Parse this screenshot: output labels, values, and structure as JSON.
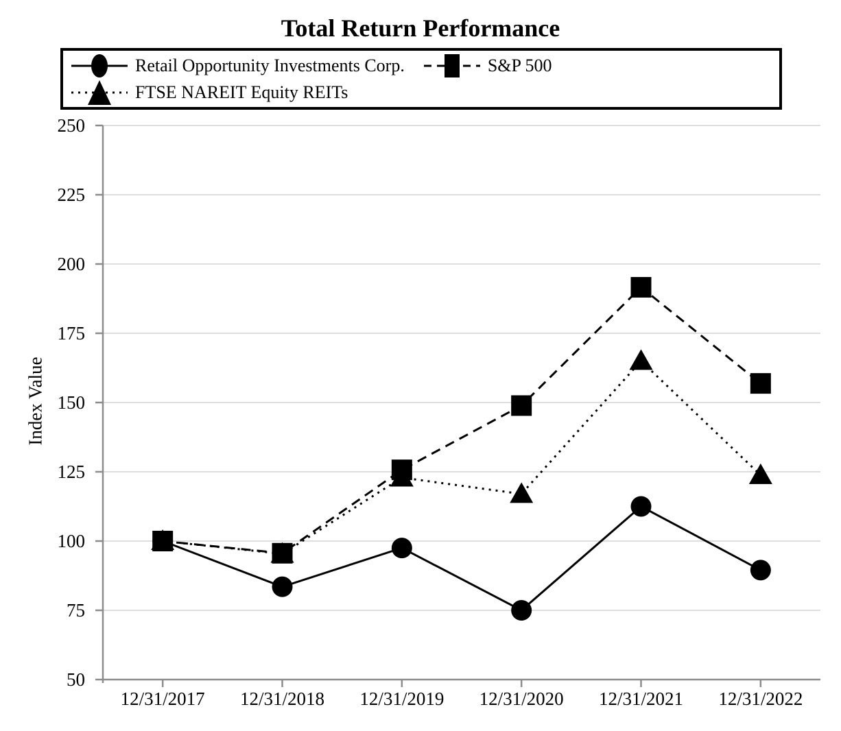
{
  "title": "Total Return Performance",
  "legend": {
    "position": "top",
    "items": [
      {
        "label": "Retail Opportunity Investments Corp.",
        "marker": "circle",
        "line_style": "solid"
      },
      {
        "label": "S&P 500",
        "marker": "square",
        "line_style": "dashed"
      },
      {
        "label": "FTSE NAREIT Equity REITs",
        "marker": "triangle",
        "line_style": "dotted"
      }
    ]
  },
  "chart_data": {
    "type": "line",
    "title": "Total Return Performance",
    "xlabel": "",
    "ylabel": "Index Value",
    "ylim": [
      50,
      250
    ],
    "yticks": [
      50,
      75,
      100,
      125,
      150,
      175,
      200,
      225,
      250
    ],
    "grid": true,
    "legend_position": "top",
    "categories": [
      "12/31/2017",
      "12/31/2018",
      "12/31/2019",
      "12/31/2020",
      "12/31/2021",
      "12/31/2022"
    ],
    "series": [
      {
        "name": "Retail Opportunity Investments Corp.",
        "marker": "circle",
        "line_style": "solid",
        "color": "#000000",
        "values": [
          100,
          83.5,
          97.5,
          75.0,
          112.5,
          89.5
        ]
      },
      {
        "name": "S&P 500",
        "marker": "square",
        "line_style": "dashed",
        "color": "#000000",
        "values": [
          100,
          95.6,
          125.7,
          148.9,
          191.6,
          156.9
        ]
      },
      {
        "name": "FTSE NAREIT Equity REITs",
        "marker": "triangle",
        "line_style": "dotted",
        "color": "#000000",
        "values": [
          100,
          95.4,
          122.9,
          117.0,
          165.0,
          123.8
        ]
      }
    ],
    "colors": {
      "axis": "#8c8c8c",
      "gridline": "#dedede",
      "series": "#000000"
    }
  }
}
